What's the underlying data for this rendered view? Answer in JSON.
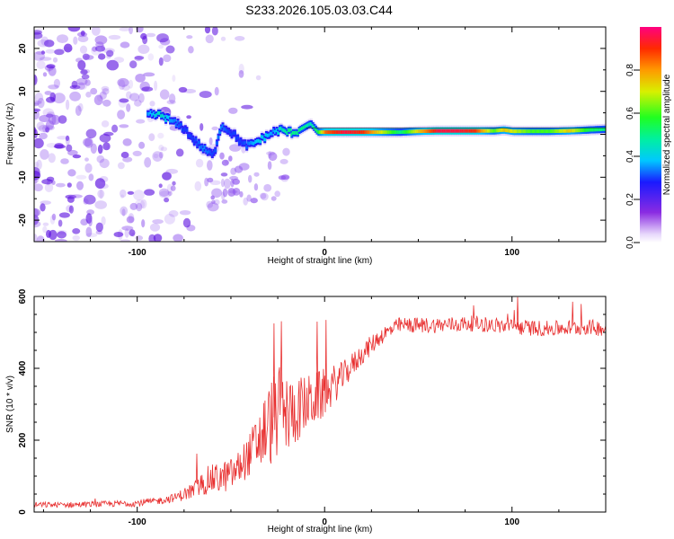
{
  "title": "S233.2026.105.03.03.C44",
  "colors": {
    "signal": "#e83030",
    "ridge_low": "#5a0ee0",
    "noise": "#8f55ee",
    "axis": "#000000"
  },
  "chart_data": [
    {
      "type": "heatmap",
      "panel": "spectrogram",
      "xlabel": "Height of straight line (km)",
      "ylabel": "Frequency (Hz)",
      "xlim": [
        -155,
        150
      ],
      "ylim": [
        -25,
        25
      ],
      "x_ticks": [
        -100,
        0,
        100
      ],
      "x_tick_labels": [
        "-100",
        "0",
        "100"
      ],
      "y_ticks": [
        -20,
        -10,
        0,
        10,
        20
      ],
      "y_tick_labels": [
        "-20",
        "-10",
        "0",
        "10",
        "20"
      ],
      "colorbar": {
        "label": "Normalized spectral amplitude",
        "range": [
          0,
          1
        ],
        "ticks": [
          0.0,
          0.2,
          0.4,
          0.6,
          0.8
        ],
        "tick_labels": [
          "0.0",
          "0.2",
          "0.4",
          "0.6",
          "0.8"
        ]
      },
      "ridge": {
        "x": [
          -95,
          -88,
          -82,
          -76,
          -70,
          -65,
          -60,
          -56,
          -52,
          -48,
          -44,
          -40,
          -36,
          -32,
          -28,
          -24,
          -20,
          -16,
          -12,
          -8,
          -4,
          0,
          10,
          20,
          30,
          40,
          50,
          60,
          70,
          80,
          90,
          95,
          100,
          110,
          120,
          130,
          140,
          150
        ],
        "frequency": [
          4.5,
          4.5,
          3,
          1.5,
          -1.5,
          -3.5,
          -5,
          2,
          1,
          -0.5,
          -2.5,
          -2.5,
          -1.5,
          -0.5,
          0.5,
          1,
          0.5,
          0.5,
          1.5,
          2.5,
          0.5,
          0.5,
          0.5,
          0.5,
          0.5,
          0.5,
          0.7,
          0.8,
          0.8,
          0.8,
          0.8,
          1,
          0.7,
          0.7,
          0.7,
          0.8,
          1,
          1.2
        ],
        "amplitude": [
          0.35,
          0.45,
          0.35,
          0.3,
          0.3,
          0.35,
          0.3,
          0.35,
          0.3,
          0.3,
          0.3,
          0.35,
          0.4,
          0.4,
          0.35,
          0.45,
          0.5,
          0.5,
          0.5,
          0.45,
          0.55,
          0.85,
          0.95,
          0.9,
          0.7,
          0.5,
          0.75,
          0.95,
          0.95,
          0.9,
          0.6,
          0.75,
          0.7,
          0.6,
          0.6,
          0.75,
          0.55,
          0.5
        ]
      },
      "noise_region_km": [
        -155,
        -75
      ]
    },
    {
      "type": "line",
      "panel": "snr",
      "xlabel": "Height of straight line (km)",
      "ylabel": "SNR (10 * v/v)",
      "xlim": [
        -155,
        150
      ],
      "ylim": [
        0,
        600
      ],
      "x_ticks": [
        -100,
        0,
        100
      ],
      "x_tick_labels": [
        "-100",
        "0",
        "100"
      ],
      "y_ticks": [
        0,
        200,
        400,
        600
      ],
      "y_tick_labels": [
        "0",
        "200",
        "400",
        "600"
      ],
      "series": [
        {
          "name": "SNR",
          "x": [
            -155,
            -140,
            -120,
            -100,
            -90,
            -80,
            -70,
            -62,
            -55,
            -48,
            -40,
            -30,
            -25,
            -20,
            -10,
            0,
            10,
            20,
            30,
            40,
            60,
            80,
            100,
            120,
            140,
            150
          ],
          "values": [
            20,
            20,
            22,
            25,
            30,
            40,
            60,
            90,
            95,
            110,
            160,
            240,
            280,
            270,
            300,
            330,
            380,
            440,
            490,
            520,
            520,
            525,
            515,
            510,
            515,
            510
          ],
          "noise_amplitude": [
            8,
            8,
            8,
            10,
            10,
            12,
            25,
            40,
            45,
            45,
            60,
            120,
            130,
            110,
            80,
            70,
            40,
            30,
            25,
            22,
            22,
            22,
            22,
            22,
            22,
            22
          ]
        }
      ]
    }
  ]
}
